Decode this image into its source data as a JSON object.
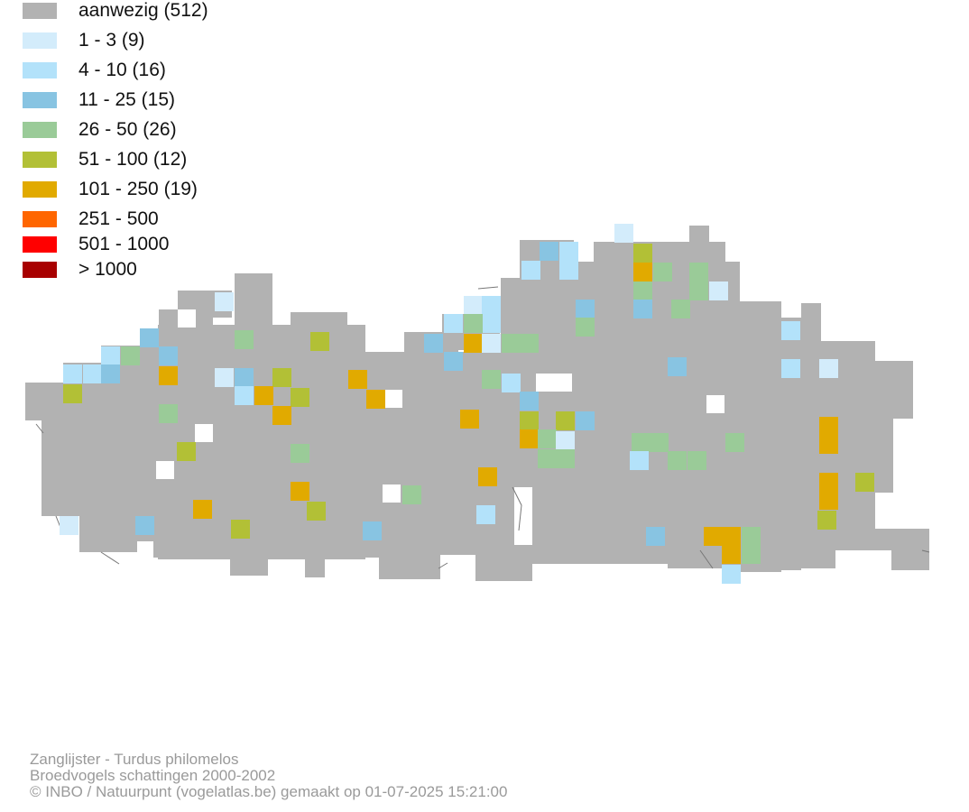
{
  "legend": [
    {
      "label": "aanwezig (512)",
      "color": "#b2b2b2"
    },
    {
      "label": "1 - 3 (9)",
      "color": "#d3ecfb"
    },
    {
      "label": "4 - 10 (16)",
      "color": "#b3e2fa"
    },
    {
      "label": "11 - 25 (15)",
      "color": "#88c4e2"
    },
    {
      "label": "26 - 50 (26)",
      "color": "#9acb98"
    },
    {
      "label": "51 - 100 (12)",
      "color": "#b2c036"
    },
    {
      "label": "101 - 250 (19)",
      "color": "#e1aa00"
    },
    {
      "label": "251 - 500",
      "color": "#ff6600"
    },
    {
      "label": "501 - 1000",
      "color": "#ff0000"
    },
    {
      "label": "> 1000",
      "color": "#a80000"
    }
  ],
  "footer": {
    "line1": "Zanglijster - Turdus philomelos",
    "line2": "Broedvogels schattingen 2000-2002",
    "line3": "© INBO / Natuurpunt (vogelatlas.be) gemaakt op 01-07-2025 15:21:00"
  }
}
